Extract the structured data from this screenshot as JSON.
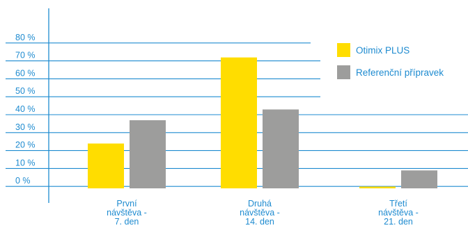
{
  "chart_data": {
    "type": "bar",
    "categories": [
      [
        "První",
        "návštěva -",
        "7. den"
      ],
      [
        "Druhá",
        "návštěva -",
        "14. den"
      ],
      [
        "Třetí",
        "návštěva -",
        "21. den"
      ]
    ],
    "series": [
      {
        "name": "Otimix PLUS",
        "color": "#ffdd00",
        "values": [
          25,
          73,
          1
        ]
      },
      {
        "name": "Referenční přípravek",
        "color": "#9d9d9c",
        "values": [
          38,
          44,
          10
        ]
      }
    ],
    "yticks": [
      "0 %",
      "10 %",
      "20 %",
      "30 %",
      "40 %",
      "50 %",
      "60 %",
      "70 %",
      "80 %"
    ],
    "ylim": [
      0,
      80
    ],
    "grid": true,
    "grid_color": "#1e8bd0",
    "text_color": "#1e8bd0",
    "legend_position": "right"
  }
}
